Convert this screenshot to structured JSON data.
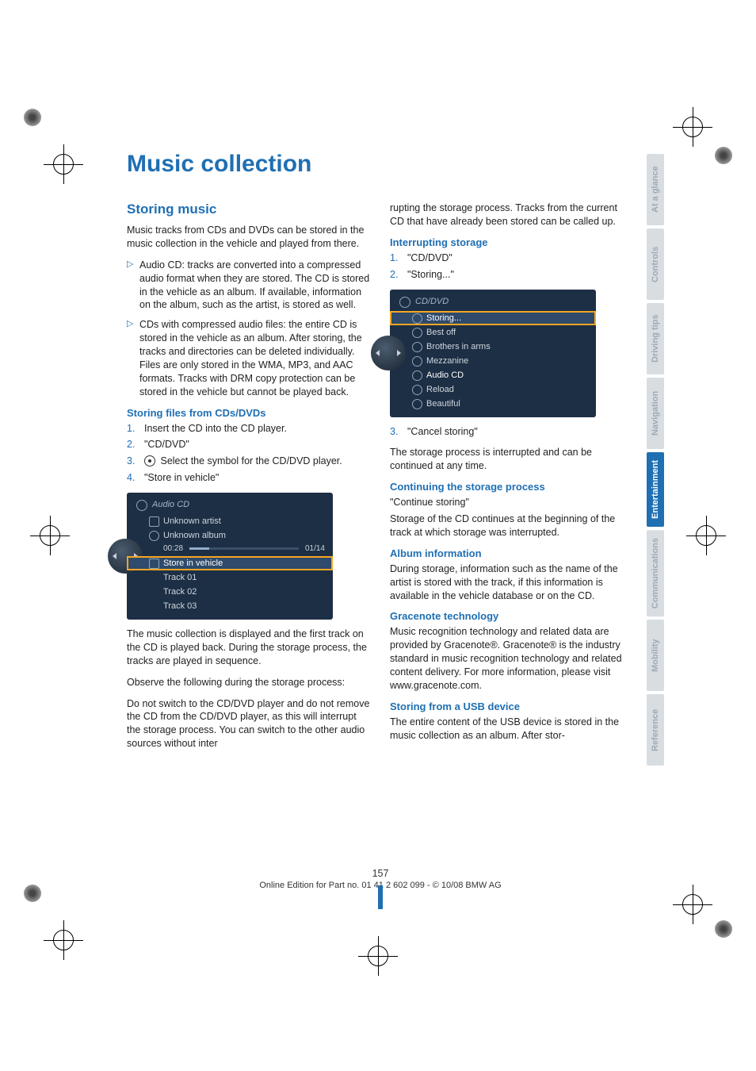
{
  "title": "Music collection",
  "section": {
    "storing_music": {
      "heading": "Storing music",
      "intro": "Music tracks from CDs and DVDs can be stored in the music collection in the vehicle and played from there.",
      "bullets": [
        "Audio CD: tracks are converted into a compressed audio format when they are stored. The CD is stored in the vehicle as an album. If available, information on the album, such as the artist, is stored as well.",
        "CDs with compressed audio files: the entire CD is stored in the vehicle as an album. After storing, the tracks and directories can be deleted individually. Files are only stored in the WMA, MP3, and AAC formats. Tracks with DRM copy protection can be stored in the vehicle but cannot be played back."
      ]
    },
    "storing_files": {
      "heading": "Storing files from CDs/DVDs",
      "steps": [
        "Insert the CD into the CD player.",
        "\"CD/DVD\"",
        "Select the symbol for the CD/DVD player.",
        "\"Store in vehicle\""
      ],
      "screenshot": {
        "header": "Audio CD",
        "rows": [
          {
            "label": "Unknown artist",
            "icon": "sq"
          },
          {
            "label": "Unknown album",
            "icon": "ci"
          }
        ],
        "time_left": "00:28",
        "time_right": "01/14",
        "selected": "Store in vehicle",
        "tracks": [
          "Track 01",
          "Track 02",
          "Track 03"
        ]
      },
      "after1": "The music collection is displayed and the first track on the CD is played back. During the storage process, the tracks are played in sequence.",
      "after2": "Observe the following during the storage process:",
      "after3": "Do not switch to the CD/DVD player and do not remove the CD from the CD/DVD player, as this will interrupt the storage process. You can switch to the other audio sources without inter"
    },
    "right_intro": "rupting the storage process. Tracks from the current CD that have already been stored can be called up.",
    "interrupting": {
      "heading": "Interrupting storage",
      "steps": [
        "\"CD/DVD\"",
        "\"Storing...\""
      ],
      "screenshot": {
        "header": "CD/DVD",
        "rows": [
          {
            "label": "Storing...",
            "sel": true
          },
          {
            "label": "Best off"
          },
          {
            "label": "Brothers in arms"
          },
          {
            "label": "Mezzanine"
          },
          {
            "label": "Audio CD",
            "active": true
          },
          {
            "label": "Reload"
          },
          {
            "label": "Beautiful"
          }
        ]
      },
      "step3": "\"Cancel storing\"",
      "after": "The storage process is interrupted and can be continued at any time."
    },
    "continuing": {
      "heading": "Continuing the storage process",
      "line1": "\"Continue storing\"",
      "line2": "Storage of the CD continues at the beginning of the track at which storage was interrupted."
    },
    "album_info": {
      "heading": "Album information",
      "body": "During storage, information such as the name of the artist is stored with the track, if this information is available in the vehicle database or on the CD."
    },
    "gracenote": {
      "heading": "Gracenote technology",
      "body": "Music recognition technology and related data are provided by Gracenote®. Gracenote® is the industry standard in music recognition technology and related content delivery. For more information, please visit www.gracenote.com."
    },
    "usb": {
      "heading": "Storing from a USB device",
      "body": "The entire content of the USB device is stored in the music collection as an album. After stor-"
    }
  },
  "tabs": [
    {
      "label": "At a glance",
      "bg": "#d8dde2",
      "fg": "#a0aab3"
    },
    {
      "label": "Controls",
      "bg": "#d8dde2",
      "fg": "#a0aab3"
    },
    {
      "label": "Driving tips",
      "bg": "#d8dde2",
      "fg": "#a0aab3"
    },
    {
      "label": "Navigation",
      "bg": "#d8dde2",
      "fg": "#a0aab3"
    },
    {
      "label": "Entertainment",
      "bg": "#1f6fb3",
      "fg": "#ffffff"
    },
    {
      "label": "Communications",
      "bg": "#d8dde2",
      "fg": "#a0aab3"
    },
    {
      "label": "Mobility",
      "bg": "#d8dde2",
      "fg": "#a0aab3"
    },
    {
      "label": "Reference",
      "bg": "#d8dde2",
      "fg": "#a0aab3"
    }
  ],
  "footer": {
    "page": "157",
    "line": "Online Edition for Part no. 01 41 2 602 099 - © 10/08 BMW AG"
  }
}
